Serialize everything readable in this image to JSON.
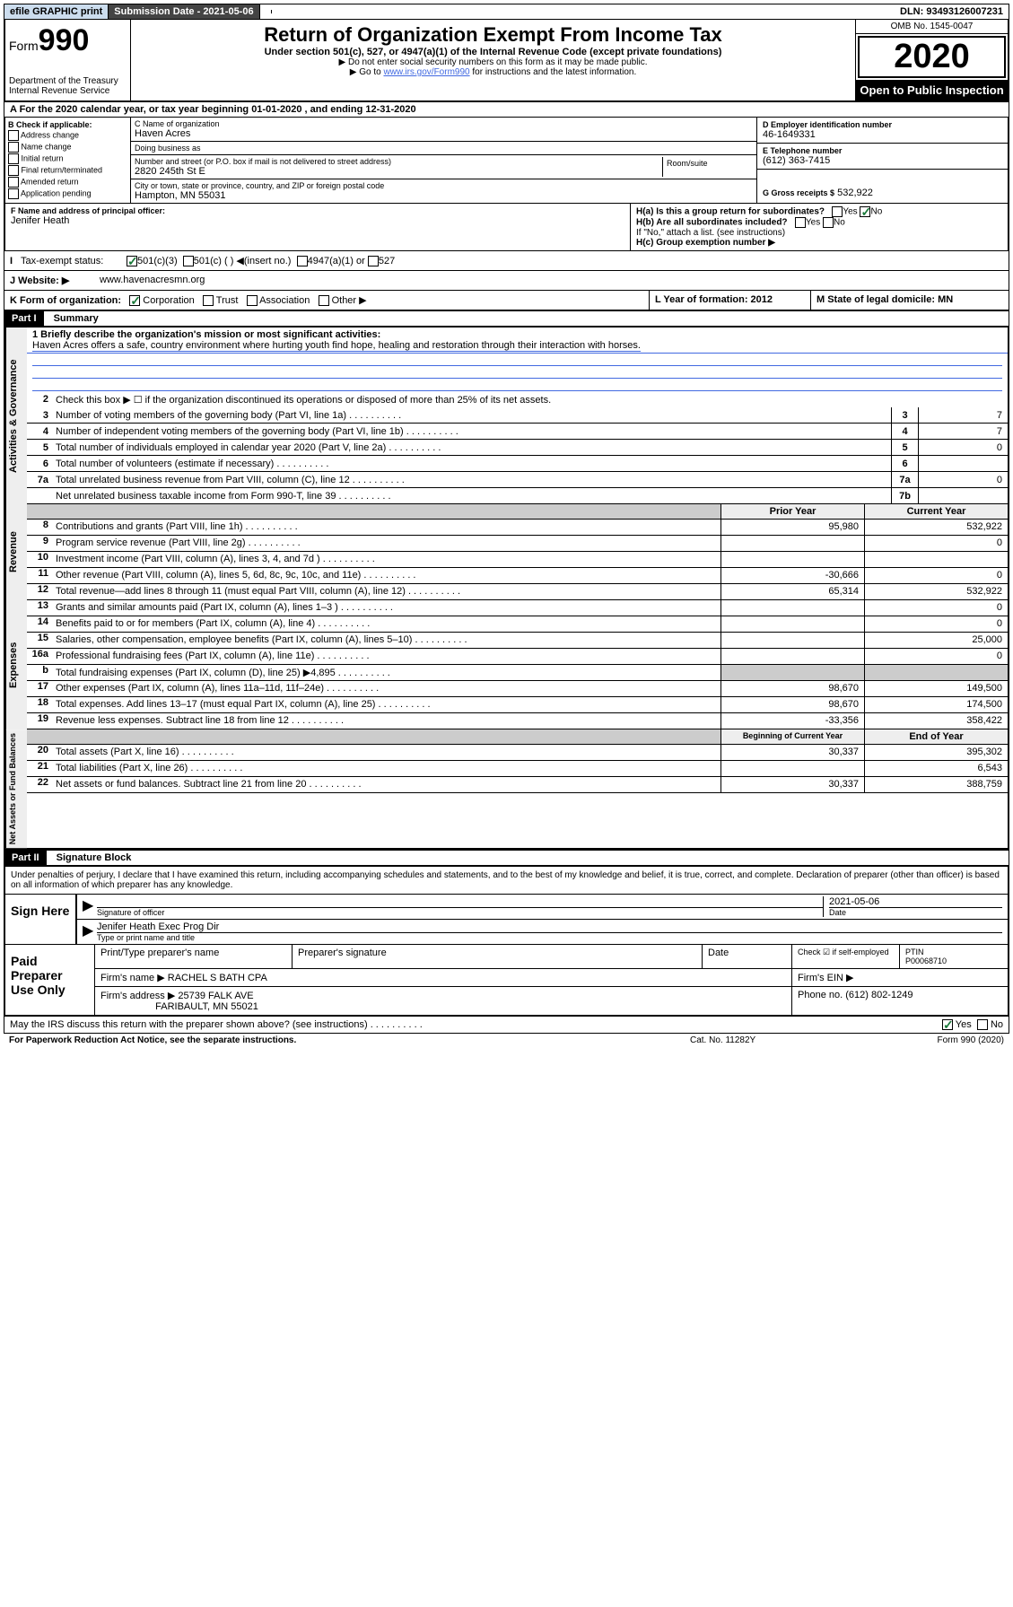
{
  "topbar": {
    "efile": "efile GRAPHIC print",
    "subdate_label": "Submission Date - 2021-05-06",
    "dln": "DLN: 93493126007231"
  },
  "header": {
    "form_prefix": "Form",
    "form_number": "990",
    "title": "Return of Organization Exempt From Income Tax",
    "subtitle": "Under section 501(c), 527, or 4947(a)(1) of the Internal Revenue Code (except private foundations)",
    "note1": "▶ Do not enter social security numbers on this form as it may be made public.",
    "note2_pre": "▶ Go to ",
    "note2_link": "www.irs.gov/Form990",
    "note2_post": " for instructions and the latest information.",
    "dept": "Department of the Treasury\nInternal Revenue Service",
    "omb": "OMB No. 1545-0047",
    "year": "2020",
    "otp": "Open to Public Inspection"
  },
  "row_a": "A For the 2020 calendar year, or tax year beginning 01-01-2020    , and ending 12-31-2020",
  "col_b": {
    "header": "B Check if applicable:",
    "items": [
      "Address change",
      "Name change",
      "Initial return",
      "Final return/terminated",
      "Amended return",
      "Application pending"
    ]
  },
  "col_c": {
    "name_lbl": "C Name of organization",
    "name": "Haven Acres",
    "dba_lbl": "Doing business as",
    "dba": "",
    "addr_lbl": "Number and street (or P.O. box if mail is not delivered to street address)",
    "addr": "2820 245th St E",
    "suite_lbl": "Room/suite",
    "city_lbl": "City or town, state or province, country, and ZIP or foreign postal code",
    "city": "Hampton, MN  55031"
  },
  "col_d": {
    "ein_lbl": "D Employer identification number",
    "ein": "46-1649331",
    "phone_lbl": "E Telephone number",
    "phone": "(612) 363-7415",
    "gross_lbl": "G Gross receipts $",
    "gross": "532,922"
  },
  "fh": {
    "f_lbl": "F  Name and address of principal officer:",
    "f_name": "Jenifer Heath",
    "ha": "H(a)  Is this a group return for subordinates?",
    "hb": "H(b)  Are all subordinates included?",
    "hb_note": "If \"No,\" attach a list. (see instructions)",
    "hc": "H(c)  Group exemption number ▶"
  },
  "status": {
    "lbl": "Tax-exempt status:",
    "o1": "501(c)(3)",
    "o2": "501(c) (   ) ◀(insert no.)",
    "o3": "4947(a)(1) or",
    "o4": "527"
  },
  "website": {
    "lbl": "J  Website: ▶",
    "val": "www.havenacresmn.org"
  },
  "k_row": {
    "k": "K Form of organization:",
    "k_opts": [
      "Corporation",
      "Trust",
      "Association",
      "Other ▶"
    ],
    "l": "L Year of formation: 2012",
    "m": "M State of legal domicile: MN"
  },
  "part1": {
    "hdr": "Part I",
    "title": "Summary"
  },
  "governance": {
    "label": "Activities & Governance",
    "l1_lbl": "1  Briefly describe the organization's mission or most significant activities:",
    "l1_txt": "Haven Acres offers a safe, country environment where hurting youth find hope, healing and restoration through their interaction with horses.",
    "l2": "Check this box ▶ ☐  if the organization discontinued its operations or disposed of more than 25% of its net assets.",
    "lines": [
      {
        "n": "3",
        "t": "Number of voting members of the governing body (Part VI, line 1a)",
        "b": "3",
        "v": "7"
      },
      {
        "n": "4",
        "t": "Number of independent voting members of the governing body (Part VI, line 1b)",
        "b": "4",
        "v": "7"
      },
      {
        "n": "5",
        "t": "Total number of individuals employed in calendar year 2020 (Part V, line 2a)",
        "b": "5",
        "v": "0"
      },
      {
        "n": "6",
        "t": "Total number of volunteers (estimate if necessary)",
        "b": "6",
        "v": ""
      },
      {
        "n": "7a",
        "t": "Total unrelated business revenue from Part VIII, column (C), line 12",
        "b": "7a",
        "v": "0"
      },
      {
        "n": "",
        "t": "Net unrelated business taxable income from Form 990-T, line 39",
        "b": "7b",
        "v": ""
      }
    ]
  },
  "revenue": {
    "label": "Revenue",
    "hdr_prior": "Prior Year",
    "hdr_current": "Current Year",
    "lines": [
      {
        "n": "8",
        "t": "Contributions and grants (Part VIII, line 1h)",
        "p": "95,980",
        "c": "532,922"
      },
      {
        "n": "9",
        "t": "Program service revenue (Part VIII, line 2g)",
        "p": "",
        "c": "0"
      },
      {
        "n": "10",
        "t": "Investment income (Part VIII, column (A), lines 3, 4, and 7d )",
        "p": "",
        "c": ""
      },
      {
        "n": "11",
        "t": "Other revenue (Part VIII, column (A), lines 5, 6d, 8c, 9c, 10c, and 11e)",
        "p": "-30,666",
        "c": "0"
      },
      {
        "n": "12",
        "t": "Total revenue—add lines 8 through 11 (must equal Part VIII, column (A), line 12)",
        "p": "65,314",
        "c": "532,922"
      }
    ]
  },
  "expenses": {
    "label": "Expenses",
    "lines": [
      {
        "n": "13",
        "t": "Grants and similar amounts paid (Part IX, column (A), lines 1–3 )",
        "p": "",
        "c": "0"
      },
      {
        "n": "14",
        "t": "Benefits paid to or for members (Part IX, column (A), line 4)",
        "p": "",
        "c": "0"
      },
      {
        "n": "15",
        "t": "Salaries, other compensation, employee benefits (Part IX, column (A), lines 5–10)",
        "p": "",
        "c": "25,000"
      },
      {
        "n": "16a",
        "t": "Professional fundraising fees (Part IX, column (A), line 11e)",
        "p": "",
        "c": "0"
      },
      {
        "n": "b",
        "t": "Total fundraising expenses (Part IX, column (D), line 25) ▶4,895",
        "p": "shade",
        "c": "shade"
      },
      {
        "n": "17",
        "t": "Other expenses (Part IX, column (A), lines 11a–11d, 11f–24e)",
        "p": "98,670",
        "c": "149,500"
      },
      {
        "n": "18",
        "t": "Total expenses. Add lines 13–17 (must equal Part IX, column (A), line 25)",
        "p": "98,670",
        "c": "174,500"
      },
      {
        "n": "19",
        "t": "Revenue less expenses. Subtract line 18 from line 12",
        "p": "-33,356",
        "c": "358,422"
      }
    ]
  },
  "netassets": {
    "label": "Net Assets or Fund Balances",
    "hdr_begin": "Beginning of Current Year",
    "hdr_end": "End of Year",
    "lines": [
      {
        "n": "20",
        "t": "Total assets (Part X, line 16)",
        "p": "30,337",
        "c": "395,302"
      },
      {
        "n": "21",
        "t": "Total liabilities (Part X, line 26)",
        "p": "",
        "c": "6,543"
      },
      {
        "n": "22",
        "t": "Net assets or fund balances. Subtract line 21 from line 20",
        "p": "30,337",
        "c": "388,759"
      }
    ]
  },
  "part2": {
    "hdr": "Part II",
    "title": "Signature Block"
  },
  "perjury": "Under penalties of perjury, I declare that I have examined this return, including accompanying schedules and statements, and to the best of my knowledge and belief, it is true, correct, and complete. Declaration of preparer (other than officer) is based on all information of which preparer has any knowledge.",
  "sign": {
    "lbl": "Sign Here",
    "sig_lbl": "Signature of officer",
    "date": "2021-05-06",
    "date_lbl": "Date",
    "name": "Jenifer Heath  Exec Prog Dir",
    "name_lbl": "Type or print name and title"
  },
  "paid": {
    "lbl": "Paid Preparer Use Only",
    "pn_lbl": "Print/Type preparer's name",
    "ps_lbl": "Preparer's signature",
    "pd_lbl": "Date",
    "pc_lbl": "Check ☑ if self-employed",
    "pt_lbl": "PTIN",
    "pt_val": "P00068710",
    "firm_lbl": "Firm's name     ▶",
    "firm": "RACHEL S BATH CPA",
    "ein_lbl": "Firm's EIN ▶",
    "addr_lbl": "Firm's address ▶",
    "addr1": "25739 FALK AVE",
    "addr2": "FARIBAULT, MN  55021",
    "phone_lbl": "Phone no.",
    "phone": "(612) 802-1249"
  },
  "discuss": "May the IRS discuss this return with the preparer shown above? (see instructions)",
  "footer": {
    "l": "For Paperwork Reduction Act Notice, see the separate instructions.",
    "m": "Cat. No. 11282Y",
    "r": "Form 990 (2020)"
  },
  "yes": "Yes",
  "no": "No"
}
